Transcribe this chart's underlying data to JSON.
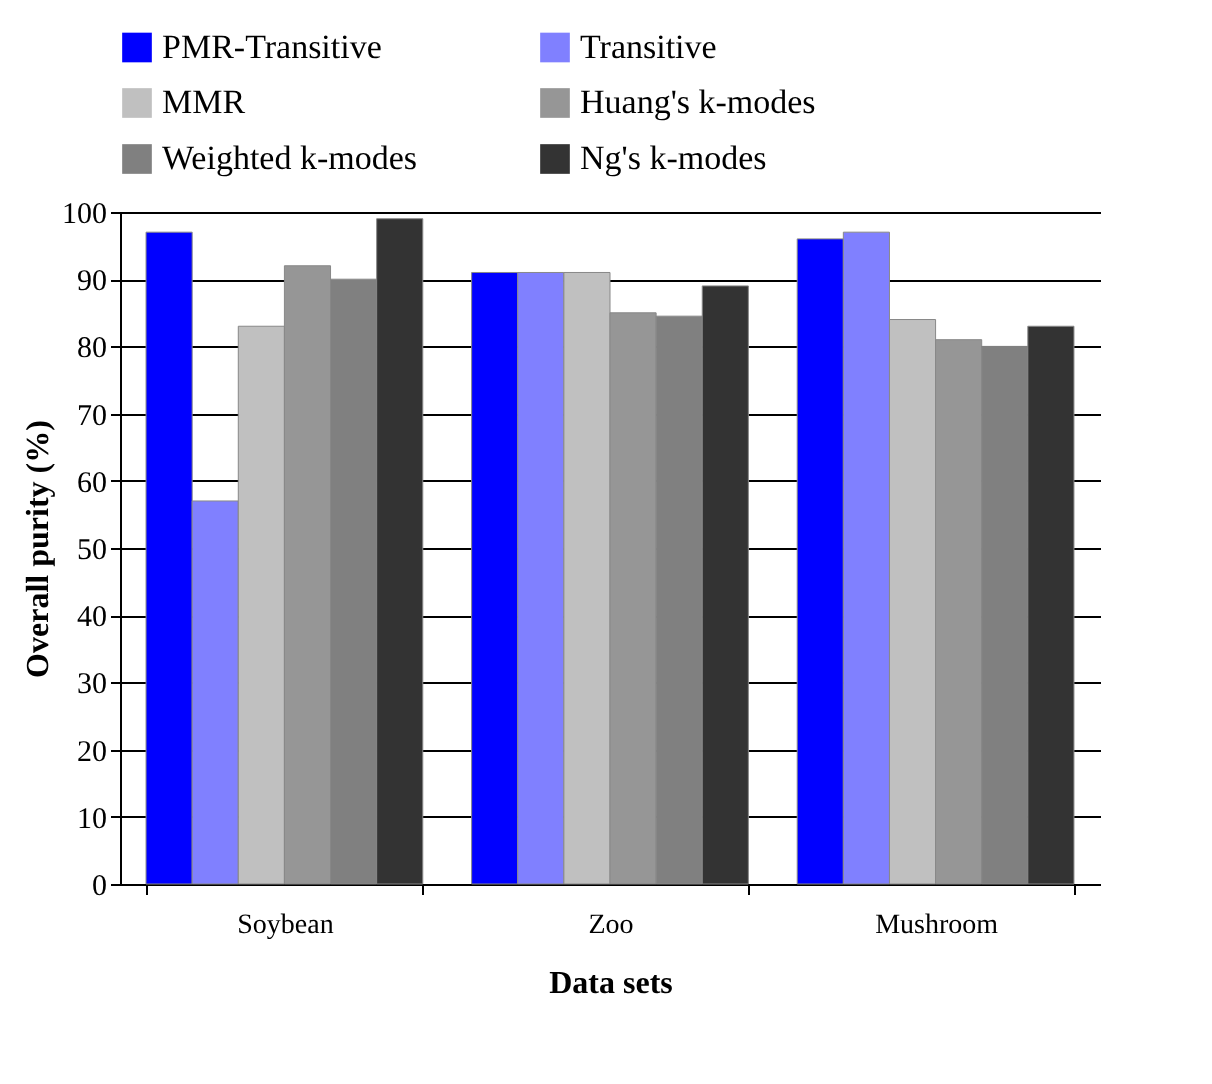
{
  "chart_data": {
    "type": "bar",
    "xlabel": "Data sets",
    "ylabel": "Overall purity (%)",
    "categories": [
      "Soybean",
      "Zoo",
      "Mushroom"
    ],
    "series": [
      {
        "name": "PMR-Transitive",
        "color": "#0000ff",
        "values": [
          97,
          91,
          96
        ]
      },
      {
        "name": "Transitive",
        "color": "#8080ff",
        "values": [
          57,
          91,
          97
        ]
      },
      {
        "name": "MMR",
        "color": "#c0c0c0",
        "values": [
          83,
          91,
          84
        ]
      },
      {
        "name": "Huang's k-modes",
        "color": "#969696",
        "values": [
          92,
          85,
          81
        ]
      },
      {
        "name": "Weighted k-modes",
        "color": "#808080",
        "values": [
          90,
          84.5,
          80
        ]
      },
      {
        "name": "Ng's k-modes",
        "color": "#333333",
        "values": [
          99,
          89,
          83
        ]
      }
    ],
    "ylim": [
      0,
      100
    ],
    "yticks": [
      0,
      10,
      20,
      30,
      40,
      50,
      60,
      70,
      80,
      90,
      100
    ],
    "grid": "y",
    "legend": "top"
  }
}
